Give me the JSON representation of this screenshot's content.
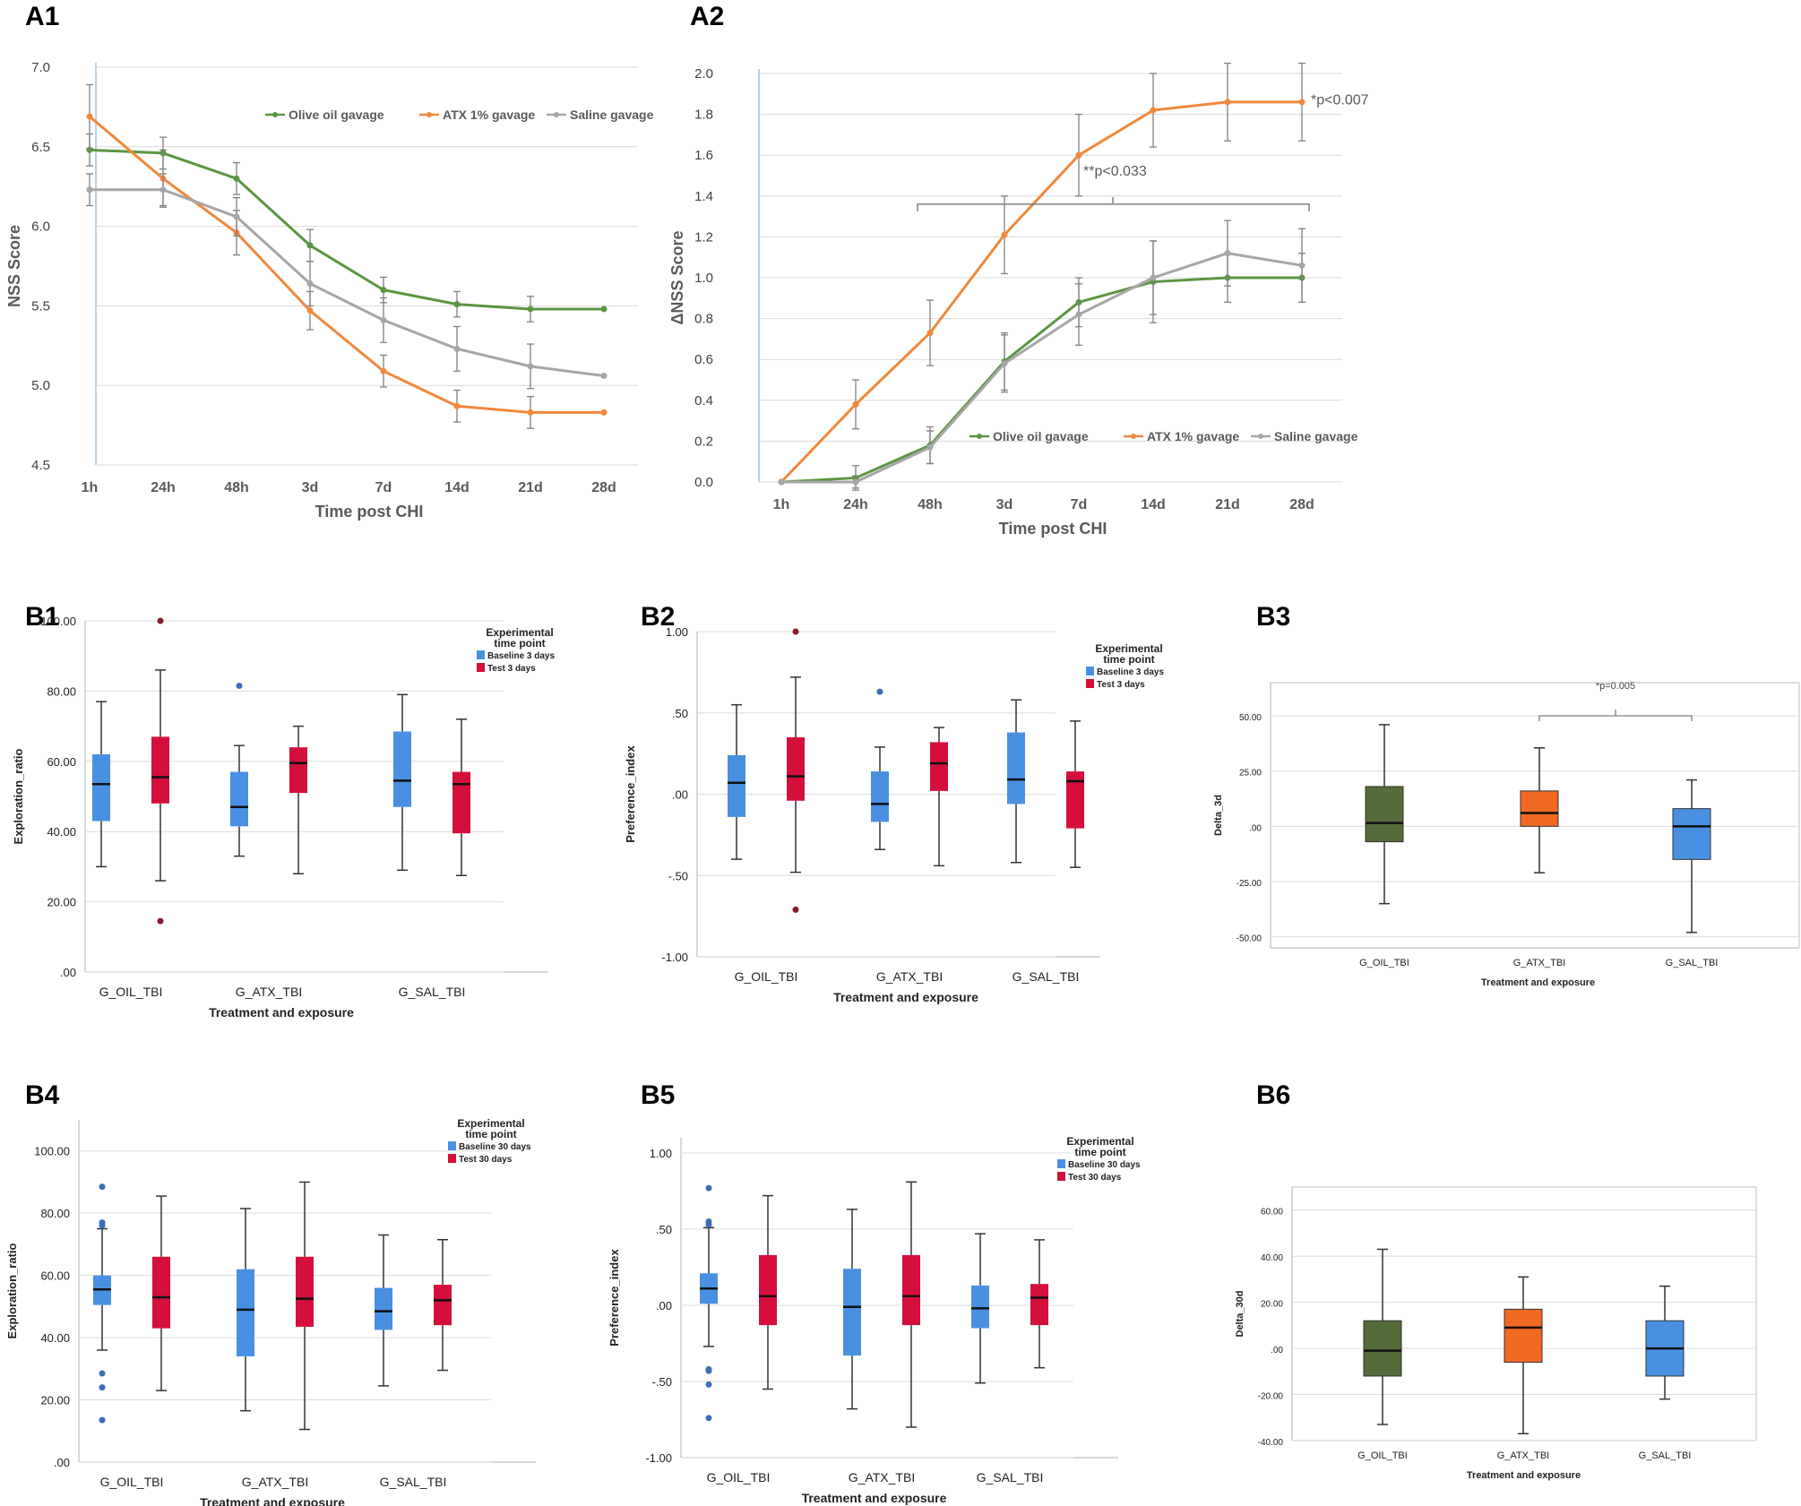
{
  "colors": {
    "green": "#5a9640",
    "orange": "#f0883c",
    "gray": "#a6a6a6",
    "blue": "#4a90e2",
    "red": "#d40f3c",
    "darkgreen": "#556b3a",
    "orange2": "#f06a22"
  },
  "chart_data": [
    {
      "id": "A1",
      "panel_label": "A1",
      "type": "line",
      "categories": [
        "1h",
        "24h",
        "48h",
        "3d",
        "7d",
        "14d",
        "21d",
        "28d"
      ],
      "xlabel": "Time post CHI",
      "ylabel": "NSS Score",
      "ylim": [
        4.5,
        7.0
      ],
      "yticks": [
        "4.5",
        "5.0",
        "5.5",
        "6.0",
        "6.5",
        "7.0"
      ],
      "legend": "top-right",
      "series": [
        {
          "name": "Olive oil gavage",
          "color": "green",
          "values": [
            6.48,
            6.46,
            6.3,
            5.88,
            5.6,
            5.51,
            5.48,
            5.48
          ],
          "err": [
            0.1,
            0.1,
            0.1,
            0.1,
            0.08,
            0.08,
            0.08,
            0
          ]
        },
        {
          "name": "ATX 1% gavage",
          "color": "orange",
          "values": [
            6.69,
            6.3,
            5.96,
            5.47,
            5.09,
            4.87,
            4.83,
            4.83
          ],
          "err": [
            0.2,
            0.18,
            0.14,
            0.12,
            0.1,
            0.1,
            0.1,
            0
          ]
        },
        {
          "name": "Saline gavage",
          "color": "gray",
          "values": [
            6.23,
            6.23,
            6.06,
            5.64,
            5.41,
            5.23,
            5.12,
            5.06
          ],
          "err": [
            0.1,
            0.1,
            0.12,
            0.14,
            0.14,
            0.14,
            0.14,
            0
          ]
        }
      ]
    },
    {
      "id": "A2",
      "panel_label": "A2",
      "type": "line",
      "categories": [
        "1h",
        "24h",
        "48h",
        "3d",
        "7d",
        "14d",
        "21d",
        "28d"
      ],
      "xlabel": "Time post CHI",
      "ylabel": "ΔNSS Score",
      "ylim": [
        0.0,
        2.0
      ],
      "yticks": [
        "0.0",
        "0.2",
        "0.4",
        "0.6",
        "0.8",
        "1.0",
        "1.2",
        "1.4",
        "1.6",
        "1.8",
        "2.0"
      ],
      "legend": "bottom-right",
      "annotations": [
        "*p<0.007",
        "**p<0.033"
      ],
      "series": [
        {
          "name": "Olive oil gavage",
          "color": "green",
          "values": [
            0,
            0.02,
            0.18,
            0.59,
            0.88,
            0.98,
            1.0,
            1.0
          ],
          "err": [
            0,
            0.06,
            0.09,
            0.14,
            0.12,
            0.2,
            0.12,
            0.12
          ]
        },
        {
          "name": "ATX 1% gavage",
          "color": "orange",
          "values": [
            0,
            0.38,
            0.73,
            1.21,
            1.6,
            1.82,
            1.86,
            1.86
          ],
          "err": [
            0,
            0.12,
            0.16,
            0.19,
            0.2,
            0.18,
            0.19,
            0.19
          ]
        },
        {
          "name": "Saline gavage",
          "color": "gray",
          "values": [
            0,
            0,
            0.17,
            0.58,
            0.82,
            1.0,
            1.12,
            1.06
          ],
          "err": [
            0,
            0.03,
            0.08,
            0.14,
            0.15,
            0.18,
            0.16,
            0.18
          ]
        }
      ]
    },
    {
      "id": "B1",
      "panel_label": "B1",
      "type": "box",
      "categories": [
        "G_OIL_TBI",
        "G_ATX_TBI",
        "G_SAL_TBI"
      ],
      "xlabel": "Treatment and exposure",
      "ylabel": "Exploration_ratio",
      "ylim": [
        0,
        100
      ],
      "yticks": [
        ".00",
        "20.00",
        "40.00",
        "60.00",
        "80.00",
        "100.00"
      ],
      "legend_title": [
        "Experimental",
        "time point"
      ],
      "legend": [
        {
          "name": "Baseline 3 days",
          "color": "blue"
        },
        {
          "name": "Test 3 days",
          "color": "red"
        }
      ],
      "boxes": [
        {
          "cat": 0,
          "series": 0,
          "color": "blue",
          "min": 30,
          "q1": 43,
          "median": 53.5,
          "q3": 62,
          "max": 77,
          "outliers": []
        },
        {
          "cat": 0,
          "series": 1,
          "color": "red",
          "min": 26,
          "q1": 48,
          "median": 55.5,
          "q3": 67,
          "max": 86,
          "outliers": [
            100,
            14.5
          ]
        },
        {
          "cat": 1,
          "series": 0,
          "color": "blue",
          "min": 33,
          "q1": 41.5,
          "median": 47,
          "q3": 57,
          "max": 64.5,
          "outliers": [
            81.5
          ]
        },
        {
          "cat": 1,
          "series": 1,
          "color": "red",
          "min": 28,
          "q1": 51,
          "median": 59.5,
          "q3": 64,
          "max": 70,
          "outliers": []
        },
        {
          "cat": 2,
          "series": 0,
          "color": "blue",
          "min": 29,
          "q1": 47,
          "median": 54.5,
          "q3": 68.5,
          "max": 79,
          "outliers": []
        },
        {
          "cat": 2,
          "series": 1,
          "color": "red",
          "min": 27.5,
          "q1": 39.5,
          "median": 53.5,
          "q3": 57,
          "max": 72,
          "outliers": []
        }
      ]
    },
    {
      "id": "B2",
      "panel_label": "B2",
      "type": "box",
      "categories": [
        "G_OIL_TBI",
        "G_ATX_TBI",
        "G_SAL_TBI"
      ],
      "xlabel": "Treatment and exposure",
      "ylabel": "Preference_index",
      "ylim": [
        -1.0,
        1.0
      ],
      "yticks": [
        "-1.00",
        "-.50",
        ".00",
        ".50",
        "1.00"
      ],
      "legend_title": [
        "Experimental",
        "time point"
      ],
      "legend": [
        {
          "name": "Baseline 3 days",
          "color": "blue"
        },
        {
          "name": "Test 3 days",
          "color": "red"
        }
      ],
      "boxes": [
        {
          "cat": 0,
          "series": 0,
          "color": "blue",
          "min": -0.4,
          "q1": -0.14,
          "median": 0.07,
          "q3": 0.24,
          "max": 0.55,
          "outliers": []
        },
        {
          "cat": 0,
          "series": 1,
          "color": "red",
          "min": -0.48,
          "q1": -0.04,
          "median": 0.11,
          "q3": 0.35,
          "max": 0.72,
          "outliers": [
            1.0,
            -0.71
          ]
        },
        {
          "cat": 1,
          "series": 0,
          "color": "blue",
          "min": -0.34,
          "q1": -0.17,
          "median": -0.06,
          "q3": 0.14,
          "max": 0.29,
          "outliers": [
            0.63
          ]
        },
        {
          "cat": 1,
          "series": 1,
          "color": "red",
          "min": -0.44,
          "q1": 0.02,
          "median": 0.19,
          "q3": 0.32,
          "max": 0.41,
          "outliers": []
        },
        {
          "cat": 2,
          "series": 0,
          "color": "blue",
          "min": -0.42,
          "q1": -0.06,
          "median": 0.09,
          "q3": 0.38,
          "max": 0.58,
          "outliers": []
        },
        {
          "cat": 2,
          "series": 1,
          "color": "red",
          "min": -0.45,
          "q1": -0.21,
          "median": 0.08,
          "q3": 0.14,
          "max": 0.45,
          "outliers": []
        }
      ]
    },
    {
      "id": "B3",
      "panel_label": "B3",
      "type": "box",
      "categories": [
        "G_OIL_TBI",
        "G_ATX_TBI",
        "G_SAL_TBI"
      ],
      "xlabel": "Treatment and exposure",
      "ylabel": "Delta_3d",
      "ylim": [
        -55,
        65
      ],
      "yticks": [
        "-50.00",
        "-25.00",
        ".00",
        "25.00",
        "50.00"
      ],
      "yticks_values": [
        -50,
        -25,
        0,
        25,
        50
      ],
      "annotations": [
        "*p=0.005"
      ],
      "boxes": [
        {
          "cat": 0,
          "series": 0,
          "color": "darkgreen",
          "min": -35,
          "q1": -7,
          "median": 1.5,
          "q3": 18,
          "max": 46,
          "outliers": []
        },
        {
          "cat": 1,
          "series": 0,
          "color": "orange2",
          "min": -21,
          "q1": 0,
          "median": 6,
          "q3": 16,
          "max": 35.5,
          "outliers": []
        },
        {
          "cat": 2,
          "series": 0,
          "color": "blue",
          "min": -48,
          "q1": -15,
          "median": 0,
          "q3": 8,
          "max": 21,
          "outliers": []
        }
      ]
    },
    {
      "id": "B4",
      "panel_label": "B4",
      "type": "box",
      "categories": [
        "G_OIL_TBI",
        "G_ATX_TBI",
        "G_SAL_TBI"
      ],
      "xlabel": "Treatment and exposure",
      "ylabel": "Exploration_ratio",
      "ylim": [
        0,
        110
      ],
      "yticks": [
        ".00",
        "20.00",
        "40.00",
        "60.00",
        "80.00",
        "100.00"
      ],
      "legend_title": [
        "Experimental",
        "time point"
      ],
      "legend": [
        {
          "name": "Baseline 30 days",
          "color": "blue"
        },
        {
          "name": "Test 30 days",
          "color": "red"
        }
      ],
      "boxes": [
        {
          "cat": 0,
          "series": 0,
          "color": "blue",
          "min": 36,
          "q1": 50.5,
          "median": 55.5,
          "q3": 60,
          "max": 75,
          "outliers": [
            88.5,
            77,
            76,
            28.5,
            24,
            13.5
          ]
        },
        {
          "cat": 0,
          "series": 1,
          "color": "red",
          "min": 23,
          "q1": 43,
          "median": 53,
          "q3": 66,
          "max": 85.5,
          "outliers": []
        },
        {
          "cat": 1,
          "series": 0,
          "color": "blue",
          "min": 16.5,
          "q1": 34,
          "median": 49,
          "q3": 62,
          "max": 81.5,
          "outliers": []
        },
        {
          "cat": 1,
          "series": 1,
          "color": "red",
          "min": 10.5,
          "q1": 43.5,
          "median": 52.5,
          "q3": 66,
          "max": 90,
          "outliers": []
        },
        {
          "cat": 2,
          "series": 0,
          "color": "blue",
          "min": 24.5,
          "q1": 42.5,
          "median": 48.5,
          "q3": 56,
          "max": 73,
          "outliers": []
        },
        {
          "cat": 2,
          "series": 1,
          "color": "red",
          "min": 29.5,
          "q1": 44,
          "median": 52,
          "q3": 57,
          "max": 71.5,
          "outliers": []
        }
      ]
    },
    {
      "id": "B5",
      "panel_label": "B5",
      "type": "box",
      "categories": [
        "G_OIL_TBI",
        "G_ATX_TBI",
        "G_SAL_TBI"
      ],
      "xlabel": "Treatment and exposure",
      "ylabel": "Preference_index",
      "ylim": [
        -1.0,
        1.1
      ],
      "yticks": [
        "-1.00",
        "-.50",
        ".00",
        ".50",
        "1.00"
      ],
      "legend_title": [
        "Experimental",
        "time point"
      ],
      "legend": [
        {
          "name": "Baseline 30 days",
          "color": "blue"
        },
        {
          "name": "Test 30 days",
          "color": "red"
        }
      ],
      "boxes": [
        {
          "cat": 0,
          "series": 0,
          "color": "blue",
          "min": -0.27,
          "q1": 0.01,
          "median": 0.11,
          "q3": 0.21,
          "max": 0.51,
          "outliers": [
            0.77,
            0.55,
            0.53,
            -0.42,
            -0.43,
            -0.52,
            -0.74
          ]
        },
        {
          "cat": 0,
          "series": 1,
          "color": "red",
          "min": -0.55,
          "q1": -0.13,
          "median": 0.06,
          "q3": 0.33,
          "max": 0.72,
          "outliers": []
        },
        {
          "cat": 1,
          "series": 0,
          "color": "blue",
          "min": -0.68,
          "q1": -0.33,
          "median": -0.01,
          "q3": 0.24,
          "max": 0.63,
          "outliers": []
        },
        {
          "cat": 1,
          "series": 1,
          "color": "red",
          "min": -0.8,
          "q1": -0.13,
          "median": 0.06,
          "q3": 0.33,
          "max": 0.81,
          "outliers": []
        },
        {
          "cat": 2,
          "series": 0,
          "color": "blue",
          "min": -0.51,
          "q1": -0.15,
          "median": -0.02,
          "q3": 0.13,
          "max": 0.47,
          "outliers": []
        },
        {
          "cat": 2,
          "series": 1,
          "color": "red",
          "min": -0.41,
          "q1": -0.13,
          "median": 0.05,
          "q3": 0.14,
          "max": 0.43,
          "outliers": []
        }
      ]
    },
    {
      "id": "B6",
      "panel_label": "B6",
      "type": "box",
      "categories": [
        "G_OIL_TBI",
        "G_ATX_TBI",
        "G_SAL_TBI"
      ],
      "xlabel": "Treatment and exposure",
      "ylabel": "Delta_30d",
      "ylim": [
        -40,
        70
      ],
      "yticks": [
        "-40.00",
        "-20.00",
        ".00",
        "20.00",
        "40.00",
        "60.00"
      ],
      "yticks_values": [
        -40,
        -20,
        0,
        20,
        40,
        60
      ],
      "boxes": [
        {
          "cat": 0,
          "series": 0,
          "color": "darkgreen",
          "min": -33,
          "q1": -12,
          "median": -1,
          "q3": 12,
          "max": 43,
          "outliers": []
        },
        {
          "cat": 1,
          "series": 0,
          "color": "orange2",
          "min": -37,
          "q1": -6,
          "median": 9,
          "q3": 17,
          "max": 31,
          "outliers": []
        },
        {
          "cat": 2,
          "series": 0,
          "color": "blue",
          "min": -22,
          "q1": -12,
          "median": 0,
          "q3": 12,
          "max": 27,
          "outliers": []
        }
      ]
    }
  ]
}
